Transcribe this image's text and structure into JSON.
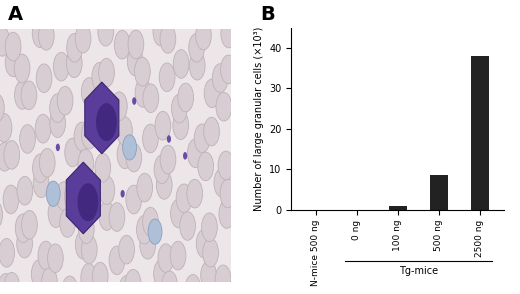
{
  "panel_labels": [
    "A",
    "B"
  ],
  "chart_data": {
    "type": "bar",
    "categories": [
      "N-mice 500 ng",
      "0 ng",
      "100 ng",
      "500 ng",
      "2500 ng"
    ],
    "values": [
      0,
      0,
      1,
      8.5,
      38
    ],
    "color": "#222222",
    "y_label": "Number of large granular cells (×10³)",
    "ylim": [
      0,
      45
    ],
    "yticks": [
      0,
      10,
      20,
      30,
      40
    ],
    "groups": [
      {
        "label": "Tg-mice",
        "categories": [
          "0 ng",
          "100 ng",
          "500 ng",
          "2500 ng"
        ]
      }
    ],
    "grid": false
  }
}
